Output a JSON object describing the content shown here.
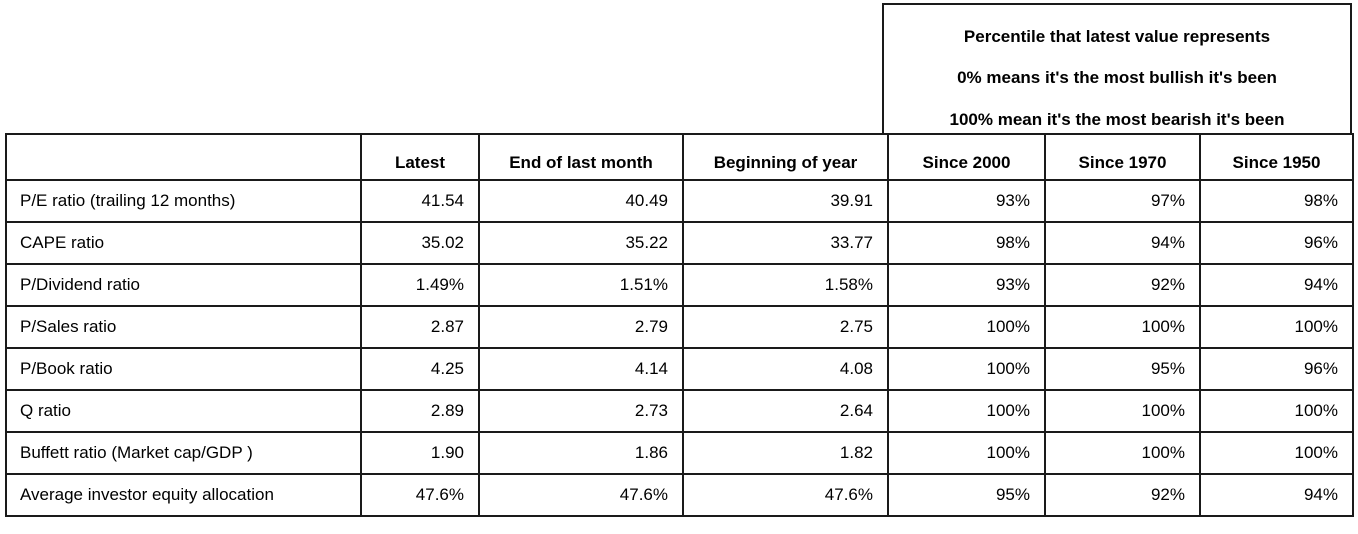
{
  "note": {
    "line1": "Percentile that latest value represents",
    "line2": "0% means it's the most bullish it's been",
    "line3": "100% mean it's the most bearish it's been"
  },
  "table": {
    "headers": [
      "",
      "Latest",
      "End of last month",
      "Beginning of year",
      "Since 2000",
      "Since 1970",
      "Since 1950"
    ],
    "rows": [
      {
        "label": "P/E ratio (trailing 12 months)",
        "cells": [
          "41.54",
          "40.49",
          "39.91",
          "93%",
          "97%",
          "98%"
        ]
      },
      {
        "label": "CAPE ratio",
        "cells": [
          "35.02",
          "35.22",
          "33.77",
          "98%",
          "94%",
          "96%"
        ]
      },
      {
        "label": "P/Dividend ratio",
        "cells": [
          "1.49%",
          "1.51%",
          "1.58%",
          "93%",
          "92%",
          "94%"
        ]
      },
      {
        "label": "P/Sales ratio",
        "cells": [
          "2.87",
          "2.79",
          "2.75",
          "100%",
          "100%",
          "100%"
        ]
      },
      {
        "label": "P/Book ratio",
        "cells": [
          "4.25",
          "4.14",
          "4.08",
          "100%",
          "95%",
          "96%"
        ]
      },
      {
        "label": "Q ratio",
        "cells": [
          "2.89",
          "2.73",
          "2.64",
          "100%",
          "100%",
          "100%"
        ]
      },
      {
        "label": "Buffett ratio (Market cap/GDP )",
        "cells": [
          "1.90",
          "1.86",
          "1.82",
          "100%",
          "100%",
          "100%"
        ]
      },
      {
        "label": "Average investor equity allocation",
        "cells": [
          "47.6%",
          "47.6%",
          "47.6%",
          "95%",
          "92%",
          "94%"
        ]
      }
    ]
  }
}
